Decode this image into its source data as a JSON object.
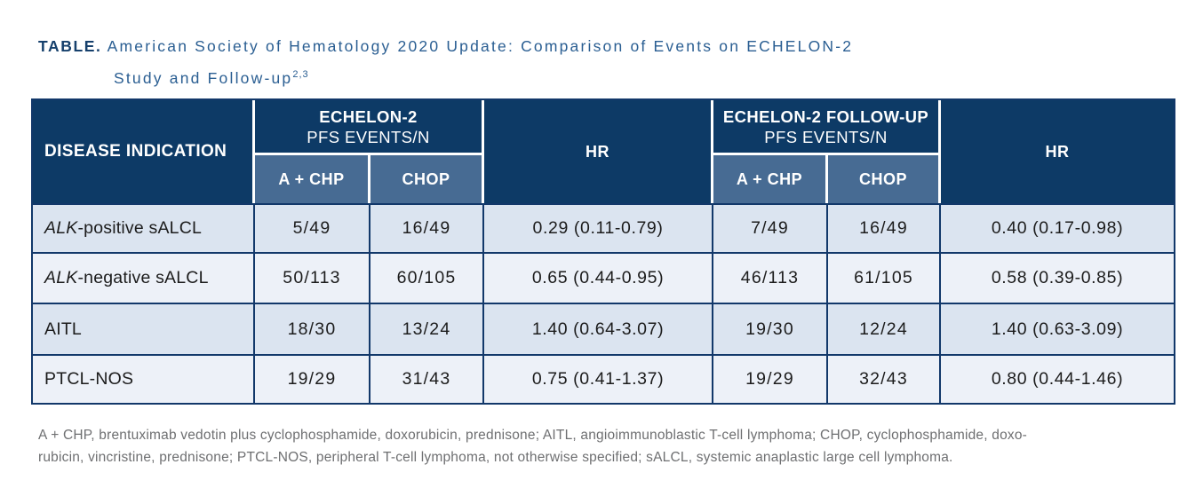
{
  "title": {
    "label": "TABLE.",
    "line1": "American Society of Hematology 2020 Update: Comparison of Events on ECHELON-2",
    "line2": "Study and Follow-up",
    "superscript": "2,3"
  },
  "table": {
    "header": {
      "disease": "DISEASE INDICATION",
      "group1_title": "ECHELON-2",
      "group1_sub": "PFS EVENTS/N",
      "group2_title": "ECHELON-2 FOLLOW-UP",
      "group2_sub": "PFS EVENTS/N",
      "hr1": "HR",
      "hr2": "HR",
      "arm1": "A + CHP",
      "arm2": "CHOP",
      "arm3": "A + CHP",
      "arm4": "CHOP"
    },
    "rows": [
      {
        "indication_italic": "ALK",
        "indication_rest": "-positive sALCL",
        "e2_achp": "5/49",
        "e2_chop": "16/49",
        "e2_hr": "0.29 (0.11-0.79)",
        "fu_achp": "7/49",
        "fu_chop": "16/49",
        "fu_hr": "0.40 (0.17-0.98)"
      },
      {
        "indication_italic": "ALK",
        "indication_rest": "-negative sALCL",
        "e2_achp": "50/113",
        "e2_chop": "60/105",
        "e2_hr": "0.65 (0.44-0.95)",
        "fu_achp": "46/113",
        "fu_chop": "61/105",
        "fu_hr": "0.58 (0.39-0.85)"
      },
      {
        "indication_italic": "",
        "indication_rest": "AITL",
        "e2_achp": "18/30",
        "e2_chop": "13/24",
        "e2_hr": "1.40 (0.64-3.07)",
        "fu_achp": "19/30",
        "fu_chop": "12/24",
        "fu_hr": "1.40 (0.63-3.09)"
      },
      {
        "indication_italic": "",
        "indication_rest": "PTCL-NOS",
        "e2_achp": "19/29",
        "e2_chop": "31/43",
        "e2_hr": "0.75 (0.41-1.37)",
        "fu_achp": "19/29",
        "fu_chop": "32/43",
        "fu_hr": "0.80 (0.44-1.46)"
      }
    ]
  },
  "footnote": {
    "line1": "A + CHP, brentuximab vedotin plus cyclophosphamide, doxorubicin, prednisone; AITL, angioimmunoblastic T-cell lymphoma; CHOP, cyclophosphamide, doxo-",
    "line2": "rubicin, vincristine, prednisone; PTCL-NOS, peripheral T-cell lymphoma, not otherwise specified; sALCL, systemic anaplastic large cell lymphoma."
  },
  "colors": {
    "header_navy": "#0d3a66",
    "subheader_steel_blue": "#476b93",
    "row_light_blue": "#dbe4f0",
    "row_pale_blue": "#edf1f8",
    "border_navy": "#12386a",
    "title_blue": "#2a5e92",
    "title_label_navy": "#16406c",
    "footnote_gray": "#6e6f71"
  }
}
